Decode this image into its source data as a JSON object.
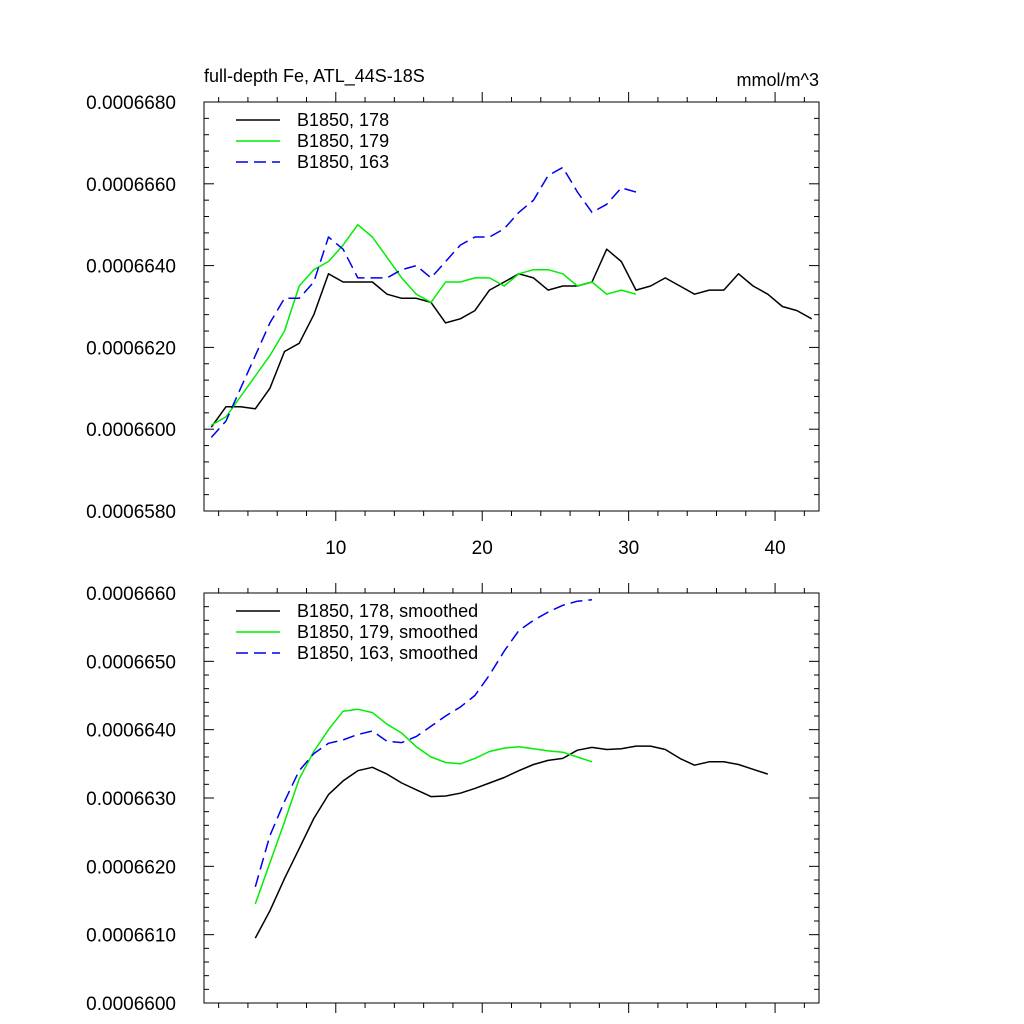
{
  "chart_data": [
    {
      "type": "line",
      "title": "full-depth Fe, ATL_44S-18S",
      "units": "mmol/m^3",
      "xlim": [
        1,
        43
      ],
      "ylim": [
        0.000658,
        0.000668
      ],
      "xticks": [
        10,
        20,
        30,
        40
      ],
      "xtick_labels": [
        "10",
        "20",
        "30",
        "40"
      ],
      "xminor": [
        2,
        4,
        6,
        8,
        12,
        14,
        16,
        18,
        22,
        24,
        26,
        28,
        32,
        34,
        36,
        38,
        42
      ],
      "yticks": [
        0.000658,
        0.00066,
        0.000662,
        0.000664,
        0.000666,
        0.000668
      ],
      "ytick_labels": [
        "0.0006580",
        "0.0006600",
        "0.0006620",
        "0.0006640",
        "0.0006660",
        "0.0006680"
      ],
      "yminor_count": 4,
      "legend_position": "top-left",
      "series": [
        {
          "name": "B1850, 178",
          "color": "#000000",
          "dash": "solid",
          "x": [
            1.5,
            2.5,
            3.5,
            4.5,
            5.5,
            6.5,
            7.5,
            8.5,
            9.5,
            10.5,
            11.5,
            12.5,
            13.5,
            14.5,
            15.5,
            16.5,
            17.5,
            18.5,
            19.5,
            20.5,
            21.5,
            22.5,
            23.5,
            24.5,
            25.5,
            26.5,
            27.5,
            28.5,
            29.5,
            30.5,
            31.5,
            32.5,
            33.5,
            34.5,
            35.5,
            36.5,
            37.5,
            38.5,
            39.5,
            40.5,
            41.5,
            42.5
          ],
          "y": [
            0.00066005,
            0.00066055,
            0.00066055,
            0.0006605,
            0.000661,
            0.0006619,
            0.0006621,
            0.0006628,
            0.0006638,
            0.0006636,
            0.0006636,
            0.0006636,
            0.0006633,
            0.0006632,
            0.0006632,
            0.0006631,
            0.0006626,
            0.0006627,
            0.0006629,
            0.0006634,
            0.0006636,
            0.0006638,
            0.0006637,
            0.0006634,
            0.0006635,
            0.0006635,
            0.0006636,
            0.0006644,
            0.0006641,
            0.0006634,
            0.0006635,
            0.0006637,
            0.0006635,
            0.0006633,
            0.0006634,
            0.0006634,
            0.0006638,
            0.0006635,
            0.0006633,
            0.000663,
            0.0006629,
            0.0006627
          ]
        },
        {
          "name": "B1850, 179",
          "color": "#00ee00",
          "dash": "solid",
          "x": [
            1.5,
            2.5,
            3.5,
            4.5,
            5.5,
            6.5,
            7.5,
            8.5,
            9.5,
            10.5,
            11.5,
            12.5,
            13.5,
            14.5,
            15.5,
            16.5,
            17.5,
            18.5,
            19.5,
            20.5,
            21.5,
            22.5,
            23.5,
            24.5,
            25.5,
            26.5,
            27.5,
            28.5,
            29.5,
            30.5
          ],
          "y": [
            0.0006601,
            0.0006603,
            0.0006608,
            0.0006613,
            0.0006618,
            0.0006624,
            0.0006635,
            0.0006639,
            0.0006641,
            0.0006645,
            0.000665,
            0.0006647,
            0.0006642,
            0.0006637,
            0.0006633,
            0.0006631,
            0.0006636,
            0.0006636,
            0.0006637,
            0.0006637,
            0.0006635,
            0.0006638,
            0.0006639,
            0.0006639,
            0.0006638,
            0.0006635,
            0.0006636,
            0.0006633,
            0.0006634,
            0.0006633
          ]
        },
        {
          "name": "B1850, 163",
          "color": "#0000ee",
          "dash": "dashed",
          "x": [
            1.5,
            2.5,
            3.5,
            4.5,
            5.5,
            6.5,
            7.5,
            8.5,
            9.5,
            10.5,
            11.5,
            12.5,
            13.5,
            14.5,
            15.5,
            16.5,
            17.5,
            18.5,
            19.5,
            20.5,
            21.5,
            22.5,
            23.5,
            24.5,
            25.5,
            26.5,
            27.5,
            28.5,
            29.5,
            30.5
          ],
          "y": [
            0.0006598,
            0.0006602,
            0.000661,
            0.0006618,
            0.0006626,
            0.0006632,
            0.0006632,
            0.0006636,
            0.0006647,
            0.0006644,
            0.0006637,
            0.0006637,
            0.0006637,
            0.0006639,
            0.000664,
            0.0006637,
            0.0006641,
            0.0006645,
            0.0006647,
            0.0006647,
            0.0006649,
            0.0006653,
            0.0006656,
            0.0006662,
            0.0006664,
            0.0006658,
            0.0006653,
            0.0006655,
            0.0006659,
            0.0006658
          ]
        }
      ]
    },
    {
      "type": "line",
      "title": "",
      "xlim": [
        1,
        43
      ],
      "ylim": [
        0.00066,
        0.000666
      ],
      "xticks": [
        10,
        20,
        30,
        40
      ],
      "xtick_labels": [],
      "xminor": [
        2,
        4,
        6,
        8,
        12,
        14,
        16,
        18,
        22,
        24,
        26,
        28,
        32,
        34,
        36,
        38,
        42
      ],
      "yticks": [
        0.00066,
        0.000661,
        0.000662,
        0.000663,
        0.000664,
        0.000665,
        0.000666
      ],
      "ytick_labels": [
        "0.0006600",
        "0.0006610",
        "0.0006620",
        "0.0006630",
        "0.0006640",
        "0.0006650",
        "0.0006660"
      ],
      "yminor_count": 4,
      "legend_position": "top-left",
      "series": [
        {
          "name": "B1850, 178, smoothed",
          "color": "#000000",
          "dash": "solid",
          "x": [
            4.5,
            5.5,
            6.5,
            7.5,
            8.5,
            9.5,
            10.5,
            11.5,
            12.5,
            13.5,
            14.5,
            15.5,
            16.5,
            17.5,
            18.5,
            19.5,
            20.5,
            21.5,
            22.5,
            23.5,
            24.5,
            25.5,
            26.5,
            27.5,
            28.5,
            29.5,
            30.5,
            31.5,
            32.5,
            33.5,
            34.5,
            35.5,
            36.5,
            37.5,
            38.5,
            39.5
          ],
          "y": [
            0.00066095,
            0.00066135,
            0.00066182,
            0.00066226,
            0.0006627,
            0.00066305,
            0.00066325,
            0.0006634,
            0.00066345,
            0.00066335,
            0.00066322,
            0.00066312,
            0.00066302,
            0.00066303,
            0.00066307,
            0.00066314,
            0.00066322,
            0.0006633,
            0.0006634,
            0.00066349,
            0.00066355,
            0.00066358,
            0.0006637,
            0.00066374,
            0.00066371,
            0.00066372,
            0.00066376,
            0.00066376,
            0.00066371,
            0.00066358,
            0.00066348,
            0.00066353,
            0.00066353,
            0.00066349,
            0.00066342,
            0.00066335
          ]
        },
        {
          "name": "B1850, 179, smoothed",
          "color": "#00ee00",
          "dash": "solid",
          "x": [
            4.5,
            5.5,
            6.5,
            7.5,
            8.5,
            9.5,
            10.5,
            11.5,
            12.5,
            13.5,
            14.5,
            15.5,
            16.5,
            17.5,
            18.5,
            19.5,
            20.5,
            21.5,
            22.5,
            23.5,
            24.5,
            25.5,
            26.5,
            27.5
          ],
          "y": [
            0.00066145,
            0.00066205,
            0.00066265,
            0.00066328,
            0.00066368,
            0.000664,
            0.00066427,
            0.0006643,
            0.00066425,
            0.00066408,
            0.00066395,
            0.00066375,
            0.0006636,
            0.00066352,
            0.0006635,
            0.00066358,
            0.00066368,
            0.00066373,
            0.00066375,
            0.00066372,
            0.00066369,
            0.00066367,
            0.0006636,
            0.00066353
          ]
        },
        {
          "name": "B1850, 163, smoothed",
          "color": "#0000ee",
          "dash": "dashed",
          "x": [
            4.5,
            5.5,
            6.5,
            7.5,
            8.5,
            9.5,
            10.5,
            11.5,
            12.5,
            13.5,
            14.5,
            15.5,
            16.5,
            17.5,
            18.5,
            19.5,
            20.5,
            21.5,
            22.5,
            23.5,
            24.5,
            25.5,
            26.5,
            27.5
          ],
          "y": [
            0.0006617,
            0.00066245,
            0.00066295,
            0.0006634,
            0.00066365,
            0.0006638,
            0.00066385,
            0.00066393,
            0.00066398,
            0.00066383,
            0.00066381,
            0.0006639,
            0.00066405,
            0.0006642,
            0.00066433,
            0.0006645,
            0.0006648,
            0.00066515,
            0.00066545,
            0.0006656,
            0.00066572,
            0.00066582,
            0.00066588,
            0.0006659
          ]
        }
      ]
    }
  ]
}
